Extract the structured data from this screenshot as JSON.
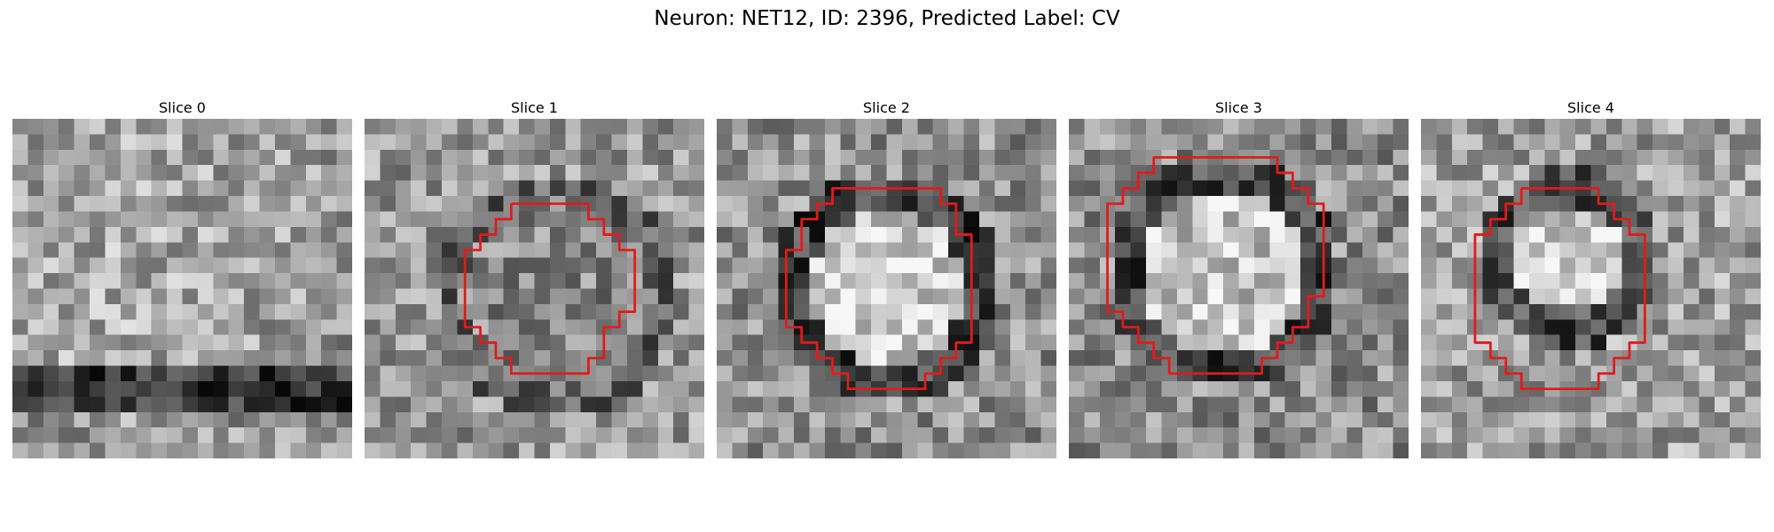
{
  "figure": {
    "title": "Neuron: NET12, ID: 2396, Predicted Label: CV"
  },
  "contour_color": "#e11b1b",
  "panels": [
    {
      "title": "Slice 0",
      "texture": "textured-noise",
      "seed": 11,
      "has_contour": false,
      "contour": []
    },
    {
      "title": "Slice 1",
      "texture": "textured-noise",
      "seed": 23,
      "has_contour": true,
      "contour": [
        [
          9.5,
          5.5
        ],
        [
          14.5,
          5.5
        ],
        [
          14.5,
          6.5
        ],
        [
          15.5,
          6.5
        ],
        [
          15.5,
          7.5
        ],
        [
          16.5,
          7.5
        ],
        [
          16.5,
          8.5
        ],
        [
          17.5,
          8.5
        ],
        [
          17.5,
          12.5
        ],
        [
          16.5,
          12.5
        ],
        [
          16.5,
          13.5
        ],
        [
          15.5,
          13.5
        ],
        [
          15.5,
          15.5
        ],
        [
          14.5,
          15.5
        ],
        [
          14.5,
          16.5
        ],
        [
          9.5,
          16.5
        ],
        [
          9.5,
          15.5
        ],
        [
          8.5,
          15.5
        ],
        [
          8.5,
          14.5
        ],
        [
          7.5,
          14.5
        ],
        [
          7.5,
          13.5
        ],
        [
          6.5,
          13.5
        ],
        [
          6.5,
          8.5
        ],
        [
          7.5,
          8.5
        ],
        [
          7.5,
          7.5
        ],
        [
          8.5,
          7.5
        ],
        [
          8.5,
          6.5
        ],
        [
          9.5,
          6.5
        ],
        [
          9.5,
          5.5
        ]
      ]
    },
    {
      "title": "Slice 2",
      "texture": "textured-noise",
      "seed": 37,
      "has_contour": true,
      "contour": [
        [
          8.5,
          4.5
        ],
        [
          14.5,
          4.5
        ],
        [
          14.5,
          5.5
        ],
        [
          15.5,
          5.5
        ],
        [
          15.5,
          7.5
        ],
        [
          16.5,
          7.5
        ],
        [
          16.5,
          14.5
        ],
        [
          15.5,
          14.5
        ],
        [
          15.5,
          15.5
        ],
        [
          14.5,
          15.5
        ],
        [
          14.5,
          16.5
        ],
        [
          13.5,
          16.5
        ],
        [
          13.5,
          17.5
        ],
        [
          8.5,
          17.5
        ],
        [
          8.5,
          16.5
        ],
        [
          7.5,
          16.5
        ],
        [
          7.5,
          15.5
        ],
        [
          6.5,
          15.5
        ],
        [
          6.5,
          14.5
        ],
        [
          5.5,
          14.5
        ],
        [
          5.5,
          13.5
        ],
        [
          4.5,
          13.5
        ],
        [
          4.5,
          8.5
        ],
        [
          5.5,
          8.5
        ],
        [
          5.5,
          6.5
        ],
        [
          6.5,
          6.5
        ],
        [
          6.5,
          5.5
        ],
        [
          7.5,
          5.5
        ],
        [
          7.5,
          4.5
        ],
        [
          8.5,
          4.5
        ]
      ]
    },
    {
      "title": "Slice 3",
      "texture": "textured-noise",
      "seed": 51,
      "has_contour": true,
      "contour": [
        [
          6.5,
          2.5
        ],
        [
          13.5,
          2.5
        ],
        [
          13.5,
          3.5
        ],
        [
          14.5,
          3.5
        ],
        [
          14.5,
          4.5
        ],
        [
          15.5,
          4.5
        ],
        [
          15.5,
          5.5
        ],
        [
          16.5,
          5.5
        ],
        [
          16.5,
          11.5
        ],
        [
          15.5,
          11.5
        ],
        [
          15.5,
          13.5
        ],
        [
          14.5,
          13.5
        ],
        [
          14.5,
          14.5
        ],
        [
          13.5,
          14.5
        ],
        [
          13.5,
          15.5
        ],
        [
          12.5,
          15.5
        ],
        [
          12.5,
          16.5
        ],
        [
          6.5,
          16.5
        ],
        [
          6.5,
          15.5
        ],
        [
          5.5,
          15.5
        ],
        [
          5.5,
          14.5
        ],
        [
          4.5,
          14.5
        ],
        [
          4.5,
          13.5
        ],
        [
          3.5,
          13.5
        ],
        [
          3.5,
          12.5
        ],
        [
          2.5,
          12.5
        ],
        [
          2.5,
          5.5
        ],
        [
          3.5,
          5.5
        ],
        [
          3.5,
          4.5
        ],
        [
          4.5,
          4.5
        ],
        [
          4.5,
          3.5
        ],
        [
          5.5,
          3.5
        ],
        [
          5.5,
          2.5
        ],
        [
          6.5,
          2.5
        ]
      ]
    },
    {
      "title": "Slice 4",
      "texture": "textured-noise",
      "seed": 67,
      "has_contour": true,
      "contour": [
        [
          6.5,
          4.5
        ],
        [
          11.5,
          4.5
        ],
        [
          11.5,
          5.5
        ],
        [
          12.5,
          5.5
        ],
        [
          12.5,
          6.5
        ],
        [
          13.5,
          6.5
        ],
        [
          13.5,
          7.5
        ],
        [
          14.5,
          7.5
        ],
        [
          14.5,
          14.5
        ],
        [
          13.5,
          14.5
        ],
        [
          13.5,
          15.5
        ],
        [
          12.5,
          15.5
        ],
        [
          12.5,
          16.5
        ],
        [
          11.5,
          16.5
        ],
        [
          11.5,
          17.5
        ],
        [
          6.5,
          17.5
        ],
        [
          6.5,
          16.5
        ],
        [
          5.5,
          16.5
        ],
        [
          5.5,
          15.5
        ],
        [
          4.5,
          15.5
        ],
        [
          4.5,
          14.5
        ],
        [
          3.5,
          14.5
        ],
        [
          3.5,
          7.5
        ],
        [
          4.5,
          7.5
        ],
        [
          4.5,
          6.5
        ],
        [
          5.5,
          6.5
        ],
        [
          5.5,
          5.5
        ],
        [
          6.5,
          5.5
        ],
        [
          6.5,
          4.5
        ]
      ]
    }
  ]
}
